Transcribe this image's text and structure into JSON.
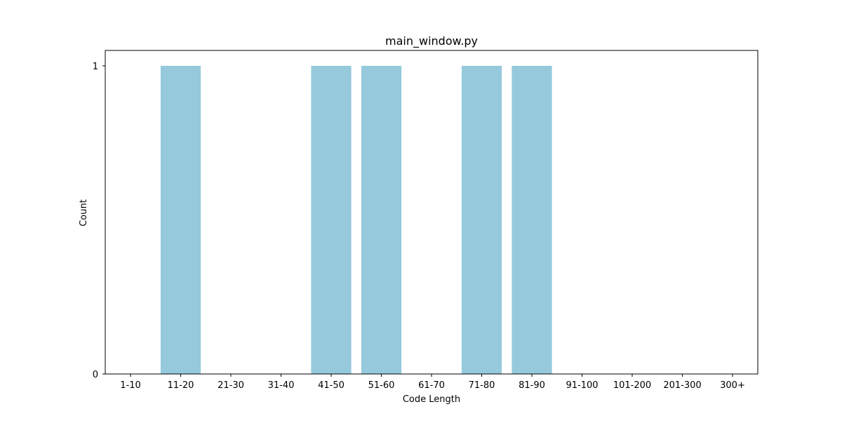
{
  "chart_data": {
    "type": "bar",
    "title": "main_window.py",
    "xlabel": "Code Length",
    "ylabel": "Count",
    "categories": [
      "1-10",
      "11-20",
      "21-30",
      "31-40",
      "41-50",
      "51-60",
      "61-70",
      "71-80",
      "81-90",
      "91-100",
      "101-200",
      "201-300",
      "300+"
    ],
    "values": [
      0,
      1,
      0,
      0,
      1,
      1,
      0,
      1,
      1,
      0,
      0,
      0,
      0
    ],
    "yticks": [
      0,
      1
    ],
    "ylim": [
      0,
      1.05
    ],
    "grid": false,
    "legend": "none",
    "bar_color": "#96c9dc"
  }
}
